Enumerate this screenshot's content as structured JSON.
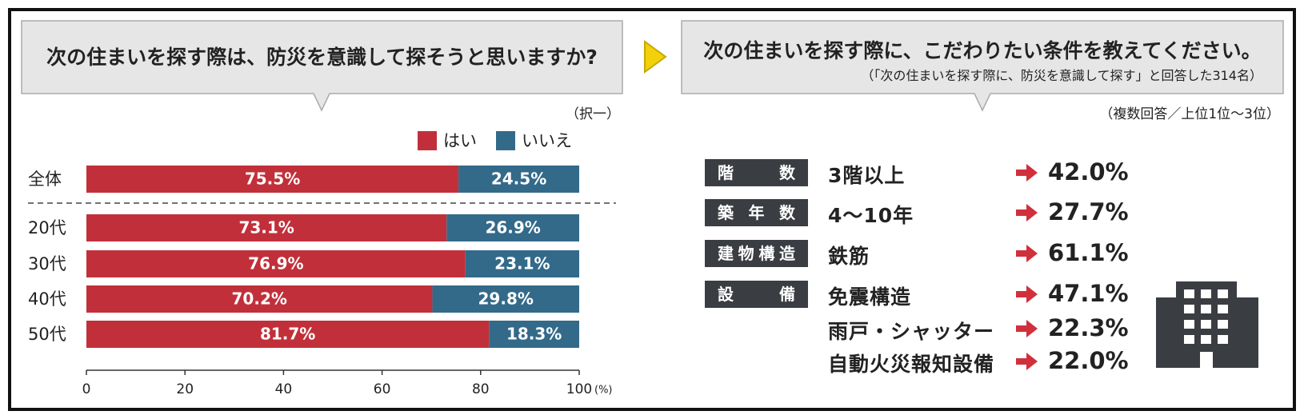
{
  "chart_data": {
    "type": "bar",
    "orientation": "horizontal",
    "stacked": true,
    "title": "次の住まいを探す際は、防災を意識して探そうと思いますか?",
    "note": "（択一）",
    "categories": [
      "全体",
      "20代",
      "30代",
      "40代",
      "50代"
    ],
    "series": [
      {
        "name": "はい",
        "color": "#c1303a",
        "values": [
          75.5,
          73.1,
          76.9,
          70.2,
          81.7
        ],
        "value_labels": [
          "75.5%",
          "73.1%",
          "76.9%",
          "70.2%",
          "81.7%"
        ]
      },
      {
        "name": "いいえ",
        "color": "#336a8a",
        "values": [
          24.5,
          26.9,
          23.1,
          29.8,
          18.3
        ],
        "value_labels": [
          "24.5%",
          "26.9%",
          "23.1%",
          "29.8%",
          "18.3%"
        ]
      }
    ],
    "xlim": [
      0,
      100
    ],
    "xticks": [
      0,
      20,
      40,
      60,
      80,
      100
    ],
    "x_unit": "(%)"
  },
  "conditions_panel": {
    "title": "次の住まいを探す際に、こだわりたい条件を教えてください。",
    "subtitle": "（「次の住まいを探す際に、防災を意識して探す」と回答した314名）",
    "note": "（複数回答／上位1位～3位）",
    "groups": [
      {
        "label": "階数",
        "items": [
          {
            "name": "3階以上",
            "value": "42.0%"
          }
        ]
      },
      {
        "label": "築年数",
        "items": [
          {
            "name": "4～10年",
            "value": "27.7%"
          }
        ]
      },
      {
        "label": "建物構造",
        "items": [
          {
            "name": "鉄筋",
            "value": "61.1%"
          }
        ]
      },
      {
        "label": "設備",
        "items": [
          {
            "name": "免震構造",
            "value": "47.1%"
          },
          {
            "name": "雨戸・シャッター",
            "value": "22.3%"
          },
          {
            "name": "自動火災報知設備",
            "value": "22.0%"
          }
        ]
      }
    ]
  }
}
